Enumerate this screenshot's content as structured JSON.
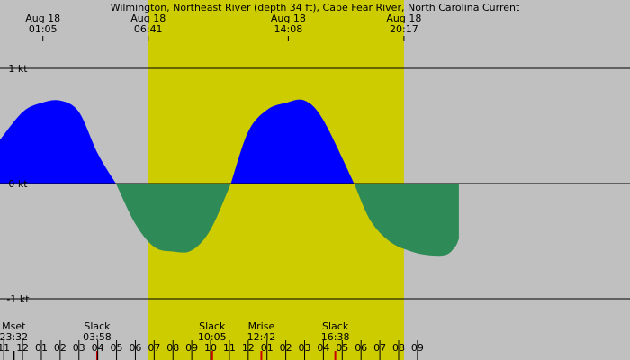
{
  "chart_data": {
    "type": "area",
    "title": "Wilmington, Northeast River (depth 34 ft), Cape Fear River, North Carolina Current",
    "y_axis": {
      "unit": "kt",
      "range": [
        -1.5,
        1.5
      ],
      "ticks": [
        {
          "value": 1,
          "label": "1 kt"
        },
        {
          "value": 0,
          "label": "0 kt"
        },
        {
          "value": -1,
          "label": "-1 kt"
        }
      ]
    },
    "x_axis": {
      "range_hours": [
        -1.2,
        32.3
      ],
      "hour_labels": [
        "11",
        "12",
        "01",
        "02",
        "03",
        "04",
        "05",
        "06",
        "07",
        "08",
        "09",
        "10",
        "11",
        "12",
        "01",
        "02",
        "03",
        "04",
        "05",
        "06",
        "07",
        "08",
        "09"
      ],
      "hour_label_start": 11
    },
    "daylight": {
      "start": 30.683,
      "end": 44.283
    },
    "top_events": [
      {
        "date": "Aug 18",
        "time": "01:05",
        "hour": 25.083
      },
      {
        "date": "Aug 18",
        "time": "06:41",
        "hour": 30.683
      },
      {
        "date": "Aug 18",
        "time": "14:08",
        "hour": 38.133
      },
      {
        "date": "Aug 18",
        "time": "20:17",
        "hour": 44.283
      }
    ],
    "bottom_events": [
      {
        "label": "Mset",
        "time": "23:32",
        "hour": 23.533,
        "color": "#000000"
      },
      {
        "label": "Slack",
        "time": "03:58",
        "hour": 27.967,
        "color": "#cc0000"
      },
      {
        "label": "Slack",
        "time": "10:05",
        "hour": 34.083,
        "color": "#cc0000"
      },
      {
        "label": "Mrise",
        "time": "12:42",
        "hour": 36.7,
        "color": "#cc0000"
      },
      {
        "label": "Slack",
        "time": "16:38",
        "hour": 40.633,
        "color": "#cc0000"
      }
    ],
    "series": [
      {
        "values": [
          [
            -1.2,
            0.38
          ],
          [
            0.0,
            0.62
          ],
          [
            1.0,
            0.7
          ],
          [
            2.0,
            0.72
          ],
          [
            3.0,
            0.62
          ],
          [
            4.0,
            0.26
          ],
          [
            4.97,
            0.0
          ],
          [
            6.0,
            -0.35
          ],
          [
            7.0,
            -0.55
          ],
          [
            8.0,
            -0.59
          ],
          [
            9.0,
            -0.58
          ],
          [
            10.0,
            -0.4
          ],
          [
            11.08,
            0.0
          ],
          [
            12.0,
            0.45
          ],
          [
            13.0,
            0.64
          ],
          [
            14.0,
            0.7
          ],
          [
            15.0,
            0.72
          ],
          [
            16.0,
            0.55
          ],
          [
            17.63,
            0.0
          ],
          [
            18.5,
            -0.32
          ],
          [
            19.5,
            -0.5
          ],
          [
            20.5,
            -0.58
          ],
          [
            21.5,
            -0.62
          ],
          [
            22.5,
            -0.62
          ],
          [
            23.0,
            -0.55
          ],
          [
            23.2,
            -0.48
          ]
        ]
      }
    ],
    "colors": {
      "flood": "#0000ff",
      "ebb": "#2e8b57",
      "night": "#c0c0c0",
      "day": "#cccc00",
      "grid": "#000000"
    }
  }
}
